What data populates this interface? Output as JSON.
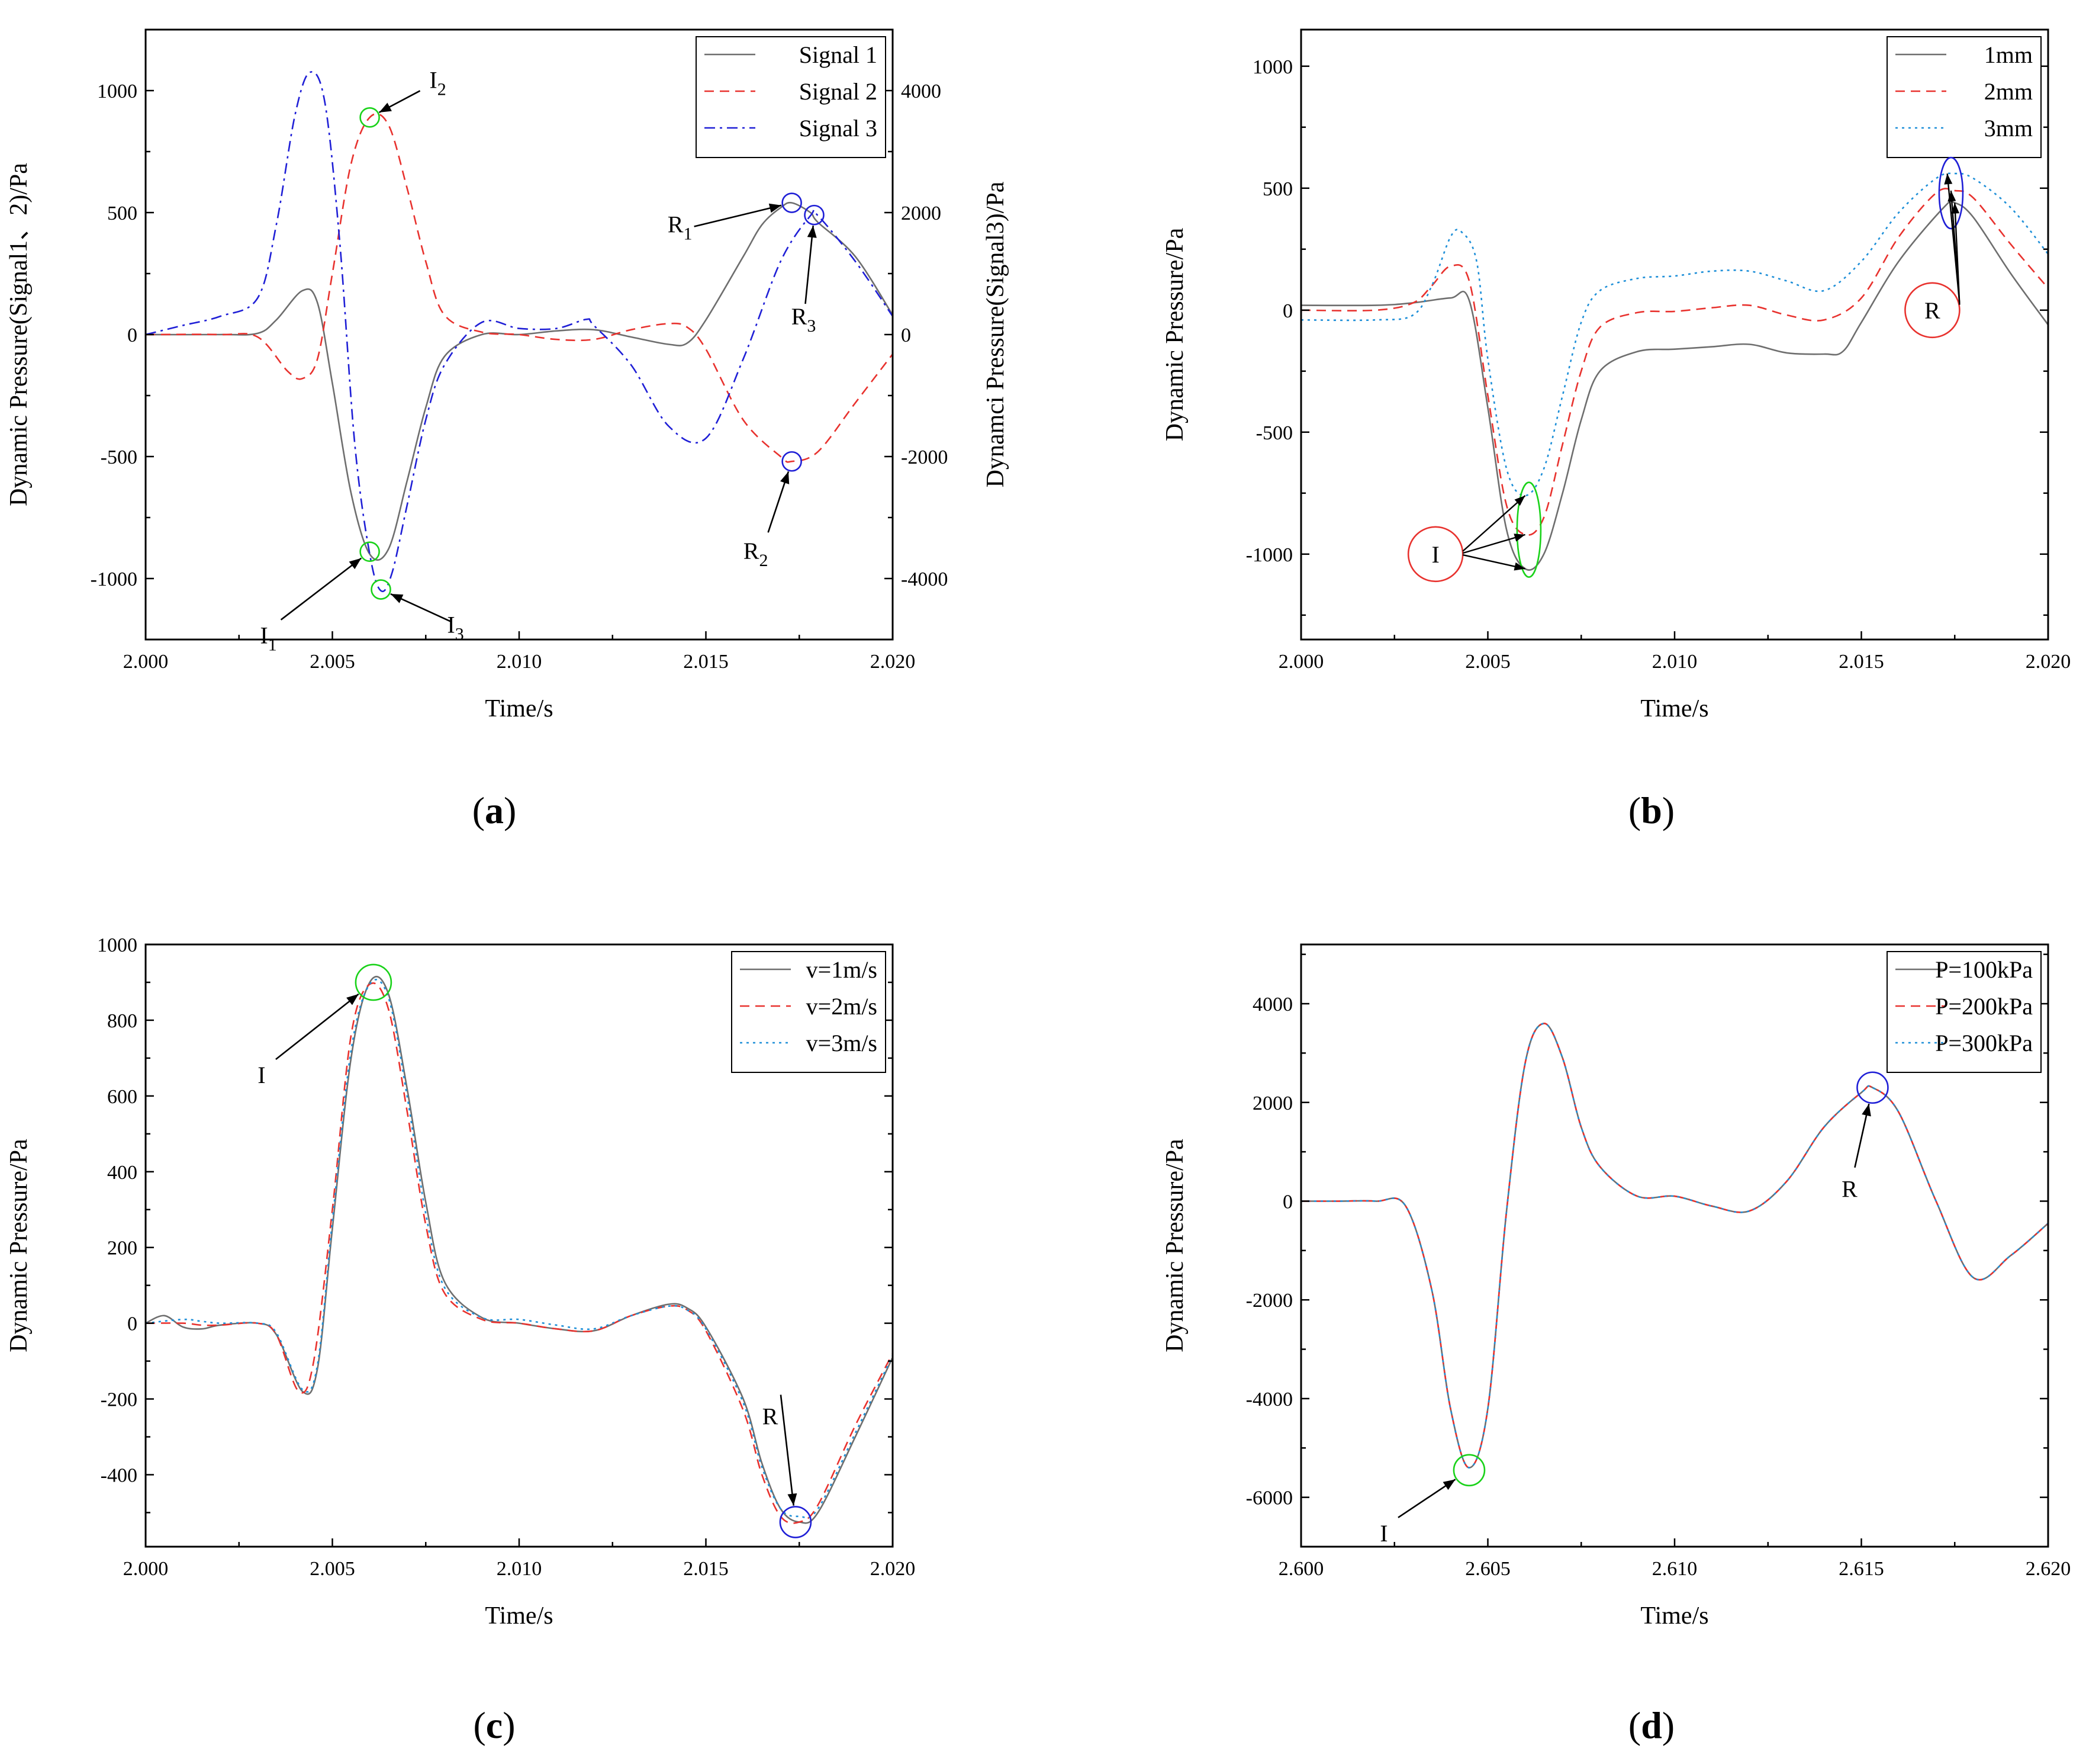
{
  "chart_data": [
    {
      "id": "a",
      "panel_label": "a",
      "type": "line",
      "title": "",
      "xlabel": "Time/s",
      "ylabel": "Dynamic Pressure(Signal1、2)/Pa",
      "y2label": "Dynamci Pressure(Signal3)/Pa",
      "xlim": [
        2.0,
        2.02
      ],
      "ylim": [
        -1250,
        1250
      ],
      "y2lim": [
        -5000,
        5000
      ],
      "xticks": [
        2.0,
        2.005,
        2.01,
        2.015,
        2.02
      ],
      "xtick_labels": [
        "2.000",
        "2.005",
        "2.010",
        "2.015",
        "2.020"
      ],
      "yticks": [
        -1000,
        -500,
        0,
        500,
        1000
      ],
      "ytick_labels": [
        "-1000",
        "-500",
        "0",
        "500",
        "1000"
      ],
      "y2ticks": [
        -4000,
        -2000,
        0,
        2000,
        4000
      ],
      "y2tick_labels": [
        "-4000",
        "-2000",
        "0",
        "2000",
        "4000"
      ],
      "legend_position": "top-right",
      "series": [
        {
          "name": "Signal 1",
          "color": "#6e6e6e",
          "dash": "solid",
          "axis": "left",
          "x": [
            2.0,
            2.002,
            2.003,
            2.0035,
            2.0042,
            2.0046,
            2.005,
            2.0055,
            2.006,
            2.0065,
            2.007,
            2.0075,
            2.008,
            2.009,
            2.01,
            2.011,
            2.012,
            2.013,
            2.014,
            2.0145,
            2.015,
            2.016,
            2.0165,
            2.017,
            2.0173,
            2.0178,
            2.018,
            2.019,
            2.02
          ],
          "y": [
            0,
            0,
            5,
            60,
            180,
            130,
            -200,
            -650,
            -900,
            -880,
            -600,
            -300,
            -90,
            0,
            0,
            15,
            20,
            -10,
            -40,
            -35,
            60,
            320,
            450,
            520,
            540,
            500,
            460,
            320,
            80
          ]
        },
        {
          "name": "Signal 2",
          "color": "#e8322e",
          "dash": "dashed",
          "axis": "left",
          "x": [
            2.0,
            2.002,
            2.003,
            2.0038,
            2.0042,
            2.0046,
            2.005,
            2.0055,
            2.006,
            2.0065,
            2.007,
            2.0075,
            2.008,
            2.009,
            2.01,
            2.011,
            2.012,
            2.013,
            2.014,
            2.0145,
            2.015,
            2.016,
            2.017,
            2.0173,
            2.018,
            2.019,
            2.02
          ],
          "y": [
            0,
            0,
            -10,
            -150,
            -180,
            -100,
            250,
            700,
            890,
            860,
            600,
            300,
            80,
            10,
            0,
            -20,
            -20,
            20,
            45,
            30,
            -60,
            -350,
            -500,
            -520,
            -480,
            -280,
            -80
          ]
        },
        {
          "name": "Signal 3",
          "color": "#1f1fd6",
          "dash": "dashdot",
          "axis": "right",
          "x": [
            2.0,
            2.001,
            2.002,
            2.003,
            2.0035,
            2.004,
            2.0044,
            2.0048,
            2.0052,
            2.0056,
            2.006,
            2.0063,
            2.0066,
            2.007,
            2.0075,
            2.008,
            2.009,
            2.01,
            2.011,
            2.0118,
            2.012,
            2.013,
            2.014,
            2.015,
            2.016,
            2.017,
            2.0178,
            2.018,
            2.019,
            2.02
          ],
          "y": [
            0,
            150,
            300,
            600,
            1800,
            3600,
            4300,
            3800,
            1500,
            -1800,
            -3600,
            -4200,
            -3900,
            -2800,
            -1400,
            -500,
            200,
            100,
            100,
            250,
            150,
            -500,
            -1500,
            -1700,
            -400,
            1200,
            1950,
            1950,
            1200,
            300
          ]
        }
      ],
      "annotations": [
        {
          "text": "I",
          "sub": "1",
          "x": 2.006,
          "y": -890,
          "circle_color": "#19d219"
        },
        {
          "text": "I",
          "sub": "2",
          "x": 2.006,
          "y": 890,
          "circle_color": "#19d219"
        },
        {
          "text": "I",
          "sub": "3",
          "x": 2.0063,
          "y": -1045,
          "circle_color": "#19d219"
        },
        {
          "text": "R",
          "sub": "1",
          "x": 2.0173,
          "y": 540,
          "circle_color": "#1f1fd6"
        },
        {
          "text": "R",
          "sub": "2",
          "x": 2.0173,
          "y": -520,
          "circle_color": "#1f1fd6"
        },
        {
          "text": "R",
          "sub": "3",
          "x": 2.0179,
          "y": 490,
          "circle_color": "#1f1fd6"
        }
      ]
    },
    {
      "id": "b",
      "panel_label": "b",
      "type": "line",
      "title": "",
      "xlabel": "Time/s",
      "ylabel": "Dynamic Pressure/Pa",
      "xlim": [
        2.0,
        2.02
      ],
      "ylim": [
        -1350,
        1150
      ],
      "xticks": [
        2.0,
        2.005,
        2.01,
        2.015,
        2.02
      ],
      "xtick_labels": [
        "2.000",
        "2.005",
        "2.010",
        "2.015",
        "2.020"
      ],
      "yticks": [
        -1000,
        -500,
        0,
        500,
        1000
      ],
      "ytick_labels": [
        "-1000",
        "-500",
        "0",
        "500",
        "1000"
      ],
      "legend_position": "top-right",
      "series": [
        {
          "name": "1mm",
          "color": "#6e6e6e",
          "dash": "solid",
          "x": [
            2.0,
            2.002,
            2.003,
            2.004,
            2.0045,
            2.005,
            2.0055,
            2.006,
            2.0065,
            2.007,
            2.0075,
            2.008,
            2.009,
            2.01,
            2.011,
            2.012,
            2.013,
            2.014,
            2.0145,
            2.015,
            2.016,
            2.0172,
            2.0175,
            2.018,
            2.019,
            2.02
          ],
          "y": [
            20,
            20,
            30,
            50,
            40,
            -400,
            -900,
            -1060,
            -1000,
            -750,
            -450,
            -250,
            -170,
            -160,
            -150,
            -140,
            -175,
            -180,
            -170,
            -50,
            200,
            420,
            440,
            380,
            150,
            -60
          ]
        },
        {
          "name": "2mm",
          "color": "#e8322e",
          "dash": "dashed",
          "x": [
            2.0,
            2.002,
            2.003,
            2.0035,
            2.004,
            2.0045,
            2.005,
            2.0055,
            2.006,
            2.0065,
            2.007,
            2.0075,
            2.008,
            2.009,
            2.01,
            2.011,
            2.012,
            2.013,
            2.014,
            2.015,
            2.016,
            2.017,
            2.0175,
            2.018,
            2.019,
            2.02
          ],
          "y": [
            0,
            0,
            30,
            100,
            180,
            120,
            -350,
            -800,
            -920,
            -850,
            -550,
            -250,
            -70,
            -10,
            -5,
            10,
            20,
            -20,
            -40,
            50,
            300,
            480,
            490,
            460,
            270,
            90
          ]
        },
        {
          "name": "3mm",
          "color": "#1e8fd8",
          "dash": "dotted",
          "x": [
            2.0,
            2.002,
            2.003,
            2.0035,
            2.004,
            2.0043,
            2.0047,
            2.005,
            2.0055,
            2.006,
            2.0065,
            2.007,
            2.0075,
            2.008,
            2.009,
            2.01,
            2.011,
            2.012,
            2.013,
            2.014,
            2.015,
            2.016,
            2.017,
            2.0175,
            2.018,
            2.019,
            2.02
          ],
          "y": [
            -40,
            -40,
            -20,
            100,
            300,
            320,
            200,
            -200,
            -650,
            -760,
            -650,
            -350,
            -50,
            80,
            130,
            140,
            160,
            160,
            120,
            80,
            200,
            400,
            540,
            560,
            540,
            420,
            230
          ]
        }
      ],
      "annotations": [
        {
          "text": "I",
          "x": 2.0036,
          "y": -1000,
          "circle_color": "#e8322e"
        },
        {
          "text": "R",
          "x": 2.0169,
          "y": 0,
          "circle_color": "#e8322e"
        }
      ]
    },
    {
      "id": "c",
      "panel_label": "c",
      "type": "line",
      "title": "",
      "xlabel": "Time/s",
      "ylabel": "Dynamic Pressure/Pa",
      "xlim": [
        2.0,
        2.02
      ],
      "ylim": [
        -590,
        1000
      ],
      "xticks": [
        2.0,
        2.005,
        2.01,
        2.015,
        2.02
      ],
      "xtick_labels": [
        "2.000",
        "2.005",
        "2.010",
        "2.015",
        "2.020"
      ],
      "yticks": [
        -400,
        -200,
        0,
        200,
        400,
        600,
        800,
        1000
      ],
      "ytick_labels": [
        "-400",
        "-200",
        "0",
        "200",
        "400",
        "600",
        "800",
        "1000"
      ],
      "legend_position": "top-right",
      "series": [
        {
          "name": "v=1m/s",
          "color": "#6e6e6e",
          "dash": "solid",
          "x": [
            2.0,
            2.0005,
            2.001,
            2.0015,
            2.002,
            2.003,
            2.0035,
            2.0042,
            2.0046,
            2.005,
            2.0055,
            2.006,
            2.0065,
            2.007,
            2.0075,
            2.008,
            2.009,
            2.01,
            2.011,
            2.012,
            2.013,
            2.014,
            2.0145,
            2.015,
            2.016,
            2.0165,
            2.017,
            2.0175,
            2.018,
            2.019,
            2.02
          ],
          "y": [
            0,
            20,
            -10,
            -15,
            -5,
            0,
            -30,
            -180,
            -120,
            250,
            700,
            900,
            870,
            620,
            320,
            110,
            15,
            0,
            -15,
            -20,
            20,
            50,
            40,
            -10,
            -200,
            -370,
            -490,
            -525,
            -500,
            -300,
            -90
          ]
        },
        {
          "name": "v=2m/s",
          "color": "#e8322e",
          "dash": "dashed",
          "x": [
            2.0,
            2.001,
            2.0015,
            2.002,
            2.003,
            2.0035,
            2.0041,
            2.0045,
            2.005,
            2.0055,
            2.006,
            2.0065,
            2.007,
            2.0075,
            2.008,
            2.009,
            2.01,
            2.011,
            2.012,
            2.013,
            2.014,
            2.0145,
            2.015,
            2.016,
            2.0165,
            2.017,
            2.0175,
            2.018,
            2.019,
            2.02
          ],
          "y": [
            0,
            0,
            -5,
            -5,
            0,
            -30,
            -180,
            -100,
            300,
            760,
            895,
            830,
            560,
            260,
            80,
            10,
            0,
            -15,
            -20,
            20,
            45,
            35,
            -20,
            -230,
            -400,
            -510,
            -525,
            -480,
            -270,
            -80
          ]
        },
        {
          "name": "v=3m/s",
          "color": "#1e8fd8",
          "dash": "dotted",
          "x": [
            2.0,
            2.001,
            2.0015,
            2.002,
            2.003,
            2.0035,
            2.0042,
            2.0046,
            2.005,
            2.0055,
            2.006,
            2.0065,
            2.007,
            2.0075,
            2.008,
            2.009,
            2.01,
            2.011,
            2.012,
            2.013,
            2.014,
            2.0145,
            2.015,
            2.016,
            2.0165,
            2.017,
            2.0175,
            2.018,
            2.019,
            2.02
          ],
          "y": [
            0,
            10,
            5,
            0,
            0,
            -25,
            -175,
            -110,
            270,
            720,
            895,
            860,
            600,
            290,
            95,
            15,
            10,
            -5,
            -15,
            20,
            45,
            35,
            -15,
            -210,
            -380,
            -490,
            -510,
            -490,
            -290,
            -85
          ]
        }
      ],
      "annotations": [
        {
          "text": "I",
          "x": 2.0061,
          "y": 900,
          "circle_color": "#19d219"
        },
        {
          "text": "R",
          "x": 2.0174,
          "y": -525,
          "circle_color": "#1f1fd6"
        }
      ]
    },
    {
      "id": "d",
      "panel_label": "d",
      "type": "line",
      "title": "",
      "xlabel": "Time/s",
      "ylabel": "Dynamic Pressure/Pa",
      "xlim": [
        2.6,
        2.62
      ],
      "ylim": [
        -7000,
        5200
      ],
      "xticks": [
        2.6,
        2.605,
        2.61,
        2.615,
        2.62
      ],
      "xtick_labels": [
        "2.600",
        "2.605",
        "2.610",
        "2.615",
        "2.620"
      ],
      "yticks": [
        -6000,
        -4000,
        -2000,
        0,
        2000,
        4000
      ],
      "ytick_labels": [
        "-6000",
        "-4000",
        "-2000",
        "0",
        "2000",
        "4000"
      ],
      "legend_position": "top-right",
      "series": [
        {
          "name": "P=100kPa",
          "color": "#6e6e6e",
          "dash": "solid",
          "x": [
            2.6,
            2.601,
            2.602,
            2.6028,
            2.6035,
            2.604,
            2.6045,
            2.605,
            2.6055,
            2.606,
            2.6065,
            2.607,
            2.6075,
            2.608,
            2.609,
            2.61,
            2.611,
            2.612,
            2.613,
            2.614,
            2.615,
            2.6153,
            2.616,
            2.617,
            2.618,
            2.619,
            2.62
          ],
          "y": [
            0,
            0,
            0,
            -100,
            -1800,
            -4200,
            -5400,
            -4200,
            -200,
            2800,
            3600,
            2900,
            1500,
            700,
            100,
            100,
            -100,
            -200,
            400,
            1500,
            2200,
            2300,
            1800,
            0,
            -1550,
            -1100,
            -450
          ]
        },
        {
          "name": "P=200kPa",
          "color": "#e8322e",
          "dash": "dashed",
          "x": [
            2.6,
            2.601,
            2.602,
            2.6028,
            2.6035,
            2.604,
            2.6045,
            2.605,
            2.6055,
            2.606,
            2.6065,
            2.607,
            2.6075,
            2.608,
            2.609,
            2.61,
            2.611,
            2.612,
            2.613,
            2.614,
            2.615,
            2.6153,
            2.616,
            2.617,
            2.618,
            2.619,
            2.62
          ],
          "y": [
            0,
            0,
            0,
            -100,
            -1800,
            -4200,
            -5400,
            -4200,
            -200,
            2800,
            3600,
            2900,
            1500,
            700,
            100,
            100,
            -100,
            -200,
            400,
            1500,
            2200,
            2300,
            1800,
            0,
            -1550,
            -1100,
            -450
          ]
        },
        {
          "name": "P=300kPa",
          "color": "#1e8fd8",
          "dash": "dotted",
          "x": [
            2.6,
            2.601,
            2.602,
            2.6028,
            2.6035,
            2.604,
            2.6045,
            2.605,
            2.6055,
            2.606,
            2.6065,
            2.607,
            2.6075,
            2.608,
            2.609,
            2.61,
            2.611,
            2.612,
            2.613,
            2.614,
            2.615,
            2.6153,
            2.616,
            2.617,
            2.618,
            2.619,
            2.62
          ],
          "y": [
            0,
            0,
            0,
            -100,
            -1800,
            -4200,
            -5400,
            -4200,
            -200,
            2800,
            3600,
            2900,
            1500,
            700,
            100,
            100,
            -100,
            -200,
            400,
            1500,
            2200,
            2300,
            1800,
            0,
            -1550,
            -1100,
            -450
          ]
        }
      ],
      "annotations": [
        {
          "text": "I",
          "x": 2.6045,
          "y": -5450,
          "circle_color": "#19d219"
        },
        {
          "text": "R",
          "x": 2.6153,
          "y": 2300,
          "circle_color": "#1f1fd6"
        }
      ]
    }
  ]
}
